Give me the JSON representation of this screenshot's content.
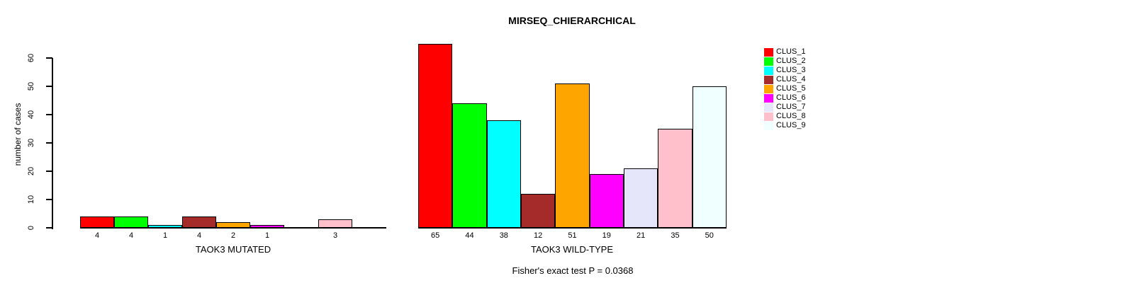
{
  "chart_data": {
    "type": "bar",
    "title": "MIRSEQ_CHIERARCHICAL",
    "ylabel": "number of cases",
    "ylim": [
      0,
      60
    ],
    "yticks": [
      0,
      10,
      20,
      30,
      40,
      50,
      60
    ],
    "grid": false,
    "legend_position": "right",
    "clusters": [
      "CLUS_1",
      "CLUS_2",
      "CLUS_3",
      "CLUS_4",
      "CLUS_5",
      "CLUS_6",
      "CLUS_7",
      "CLUS_8",
      "CLUS_9"
    ],
    "colors": [
      "#FF0000",
      "#00FF00",
      "#00FFFF",
      "#A52A2A",
      "#FFA500",
      "#FF00FF",
      "#E6E6FA",
      "#FFC0CB",
      "#F0FFFF"
    ],
    "groups": [
      {
        "label": "TAOK3 MUTATED",
        "values": [
          4,
          4,
          1,
          4,
          2,
          1,
          0,
          3,
          0
        ]
      },
      {
        "label": "TAOK3 WILD-TYPE",
        "values": [
          65,
          44,
          38,
          12,
          51,
          19,
          21,
          35,
          50
        ]
      }
    ],
    "bar_value_labels_shown_for_zero": false,
    "annotation": "Fisher's exact test P = 0.0368"
  }
}
